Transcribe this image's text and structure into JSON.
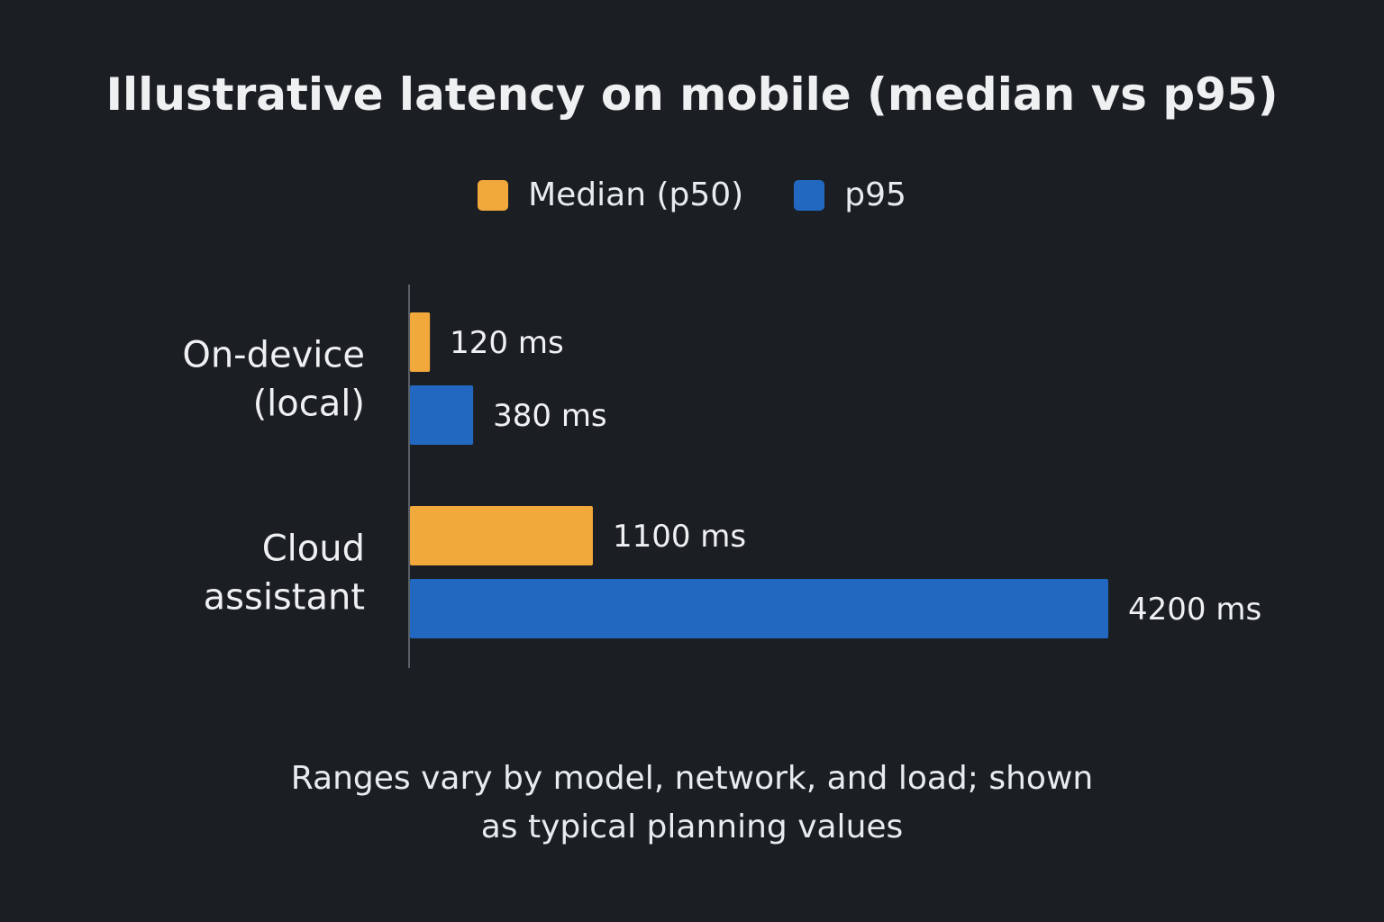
{
  "chart_data": {
    "type": "bar",
    "orientation": "horizontal",
    "title": "Illustrative latency on mobile (median vs p95)",
    "categories": [
      [
        "On-device",
        "(local)"
      ],
      [
        "Cloud",
        "assistant"
      ]
    ],
    "series": [
      {
        "name": "Median (p50)",
        "color": "#f2a93b",
        "values": [
          120,
          1100
        ],
        "labels": [
          "120 ms",
          "1100 ms"
        ]
      },
      {
        "name": "p95",
        "color": "#2268c0",
        "values": [
          380,
          4200
        ],
        "labels": [
          "380 ms",
          "4200 ms"
        ]
      }
    ],
    "legend_placement": "top-center",
    "grid": false
  },
  "footnote": {
    "line1": "Ranges vary by model, network, and load; shown",
    "line2": "as typical planning values"
  },
  "colors": {
    "background": "#1b1f23",
    "text": "#eef0f2",
    "axis": "#5b6066"
  }
}
